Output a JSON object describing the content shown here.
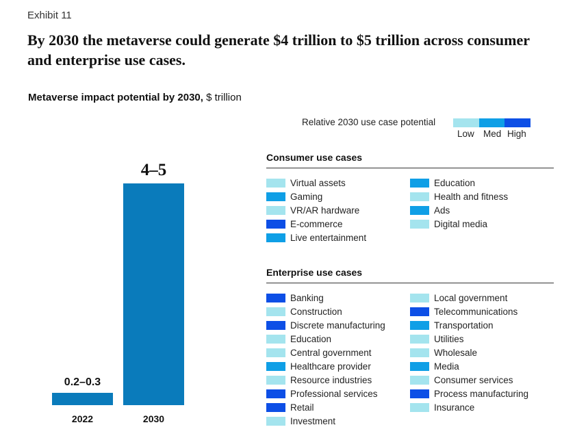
{
  "exhibit": "Exhibit 11",
  "headline": "By 2030 the metaverse could generate $4 trillion to $5 trillion across consumer and enterprise use cases.",
  "subtitle_bold": "Metaverse impact potential by 2030,",
  "subtitle_unit": "$ trillion",
  "legend": {
    "title": "Relative 2030 use case potential",
    "levels": [
      "Low",
      "Med",
      "High"
    ],
    "colors": {
      "Low": "#a4e4ee",
      "Med": "#0f9fe6",
      "High": "#0d4fe6"
    }
  },
  "bar_color": "#0a7bbb",
  "chart_data": {
    "type": "bar",
    "title": "Metaverse impact potential by 2030",
    "ylabel": "$ trillion",
    "categories": [
      "2022",
      "2030"
    ],
    "values": [
      0.25,
      4.5
    ],
    "value_labels": [
      "0.2–0.3",
      "4–5"
    ],
    "ylim": [
      0,
      4.5
    ]
  },
  "consumer": {
    "title": "Consumer use cases",
    "col1": [
      {
        "label": "Virtual assets",
        "level": "Low"
      },
      {
        "label": "Gaming",
        "level": "Med"
      },
      {
        "label": "VR/AR hardware",
        "level": "Low"
      },
      {
        "label": "E-commerce",
        "level": "High"
      },
      {
        "label": "Live entertainment",
        "level": "Med"
      }
    ],
    "col2": [
      {
        "label": "Education",
        "level": "Med"
      },
      {
        "label": "Health and fitness",
        "level": "Low"
      },
      {
        "label": "Ads",
        "level": "Med"
      },
      {
        "label": "Digital media",
        "level": "Low"
      }
    ]
  },
  "enterprise": {
    "title": "Enterprise use cases",
    "col1": [
      {
        "label": "Banking",
        "level": "High"
      },
      {
        "label": "Construction",
        "level": "Low"
      },
      {
        "label": "Discrete manufacturing",
        "level": "High"
      },
      {
        "label": "Education",
        "level": "Low"
      },
      {
        "label": "Central government",
        "level": "Low"
      },
      {
        "label": "Healthcare provider",
        "level": "Med"
      },
      {
        "label": "Resource industries",
        "level": "Low"
      },
      {
        "label": "Professional services",
        "level": "High"
      },
      {
        "label": "Retail",
        "level": "High"
      },
      {
        "label": "Investment",
        "level": "Low"
      }
    ],
    "col2": [
      {
        "label": "Local government",
        "level": "Low"
      },
      {
        "label": "Telecommunications",
        "level": "High"
      },
      {
        "label": "Transportation",
        "level": "Med"
      },
      {
        "label": "Utilities",
        "level": "Low"
      },
      {
        "label": "Wholesale",
        "level": "Low"
      },
      {
        "label": "Media",
        "level": "Med"
      },
      {
        "label": "Consumer services",
        "level": "Low"
      },
      {
        "label": "Process manufacturing",
        "level": "High"
      },
      {
        "label": "Insurance",
        "level": "Low"
      }
    ]
  }
}
